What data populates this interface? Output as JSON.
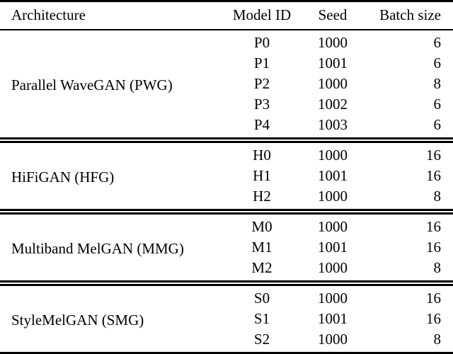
{
  "colors": {
    "text": "#000000",
    "background": "#ffffff",
    "rule": "#000000"
  },
  "table": {
    "columns": [
      {
        "label": "Architecture",
        "align": "left"
      },
      {
        "label": "Model ID",
        "align": "center"
      },
      {
        "label": "Seed",
        "align": "center"
      },
      {
        "label": "Batch size",
        "align": "right"
      }
    ],
    "groups": [
      {
        "architecture": "Parallel WaveGAN (PWG)",
        "rows": [
          [
            "P0",
            "1000",
            "6"
          ],
          [
            "P1",
            "1001",
            "6"
          ],
          [
            "P2",
            "1000",
            "8"
          ],
          [
            "P3",
            "1002",
            "6"
          ],
          [
            "P4",
            "1003",
            "6"
          ]
        ]
      },
      {
        "architecture": "HiFiGAN (HFG)",
        "rows": [
          [
            "H0",
            "1000",
            "16"
          ],
          [
            "H1",
            "1001",
            "16"
          ],
          [
            "H2",
            "1000",
            "8"
          ]
        ]
      },
      {
        "architecture": "Multiband MelGAN (MMG)",
        "rows": [
          [
            "M0",
            "1000",
            "16"
          ],
          [
            "M1",
            "1001",
            "16"
          ],
          [
            "M2",
            "1000",
            "8"
          ]
        ]
      },
      {
        "architecture": "StyleMelGAN (SMG)",
        "rows": [
          [
            "S0",
            "1000",
            "16"
          ],
          [
            "S1",
            "1001",
            "16"
          ],
          [
            "S2",
            "1000",
            "8"
          ]
        ]
      }
    ]
  }
}
